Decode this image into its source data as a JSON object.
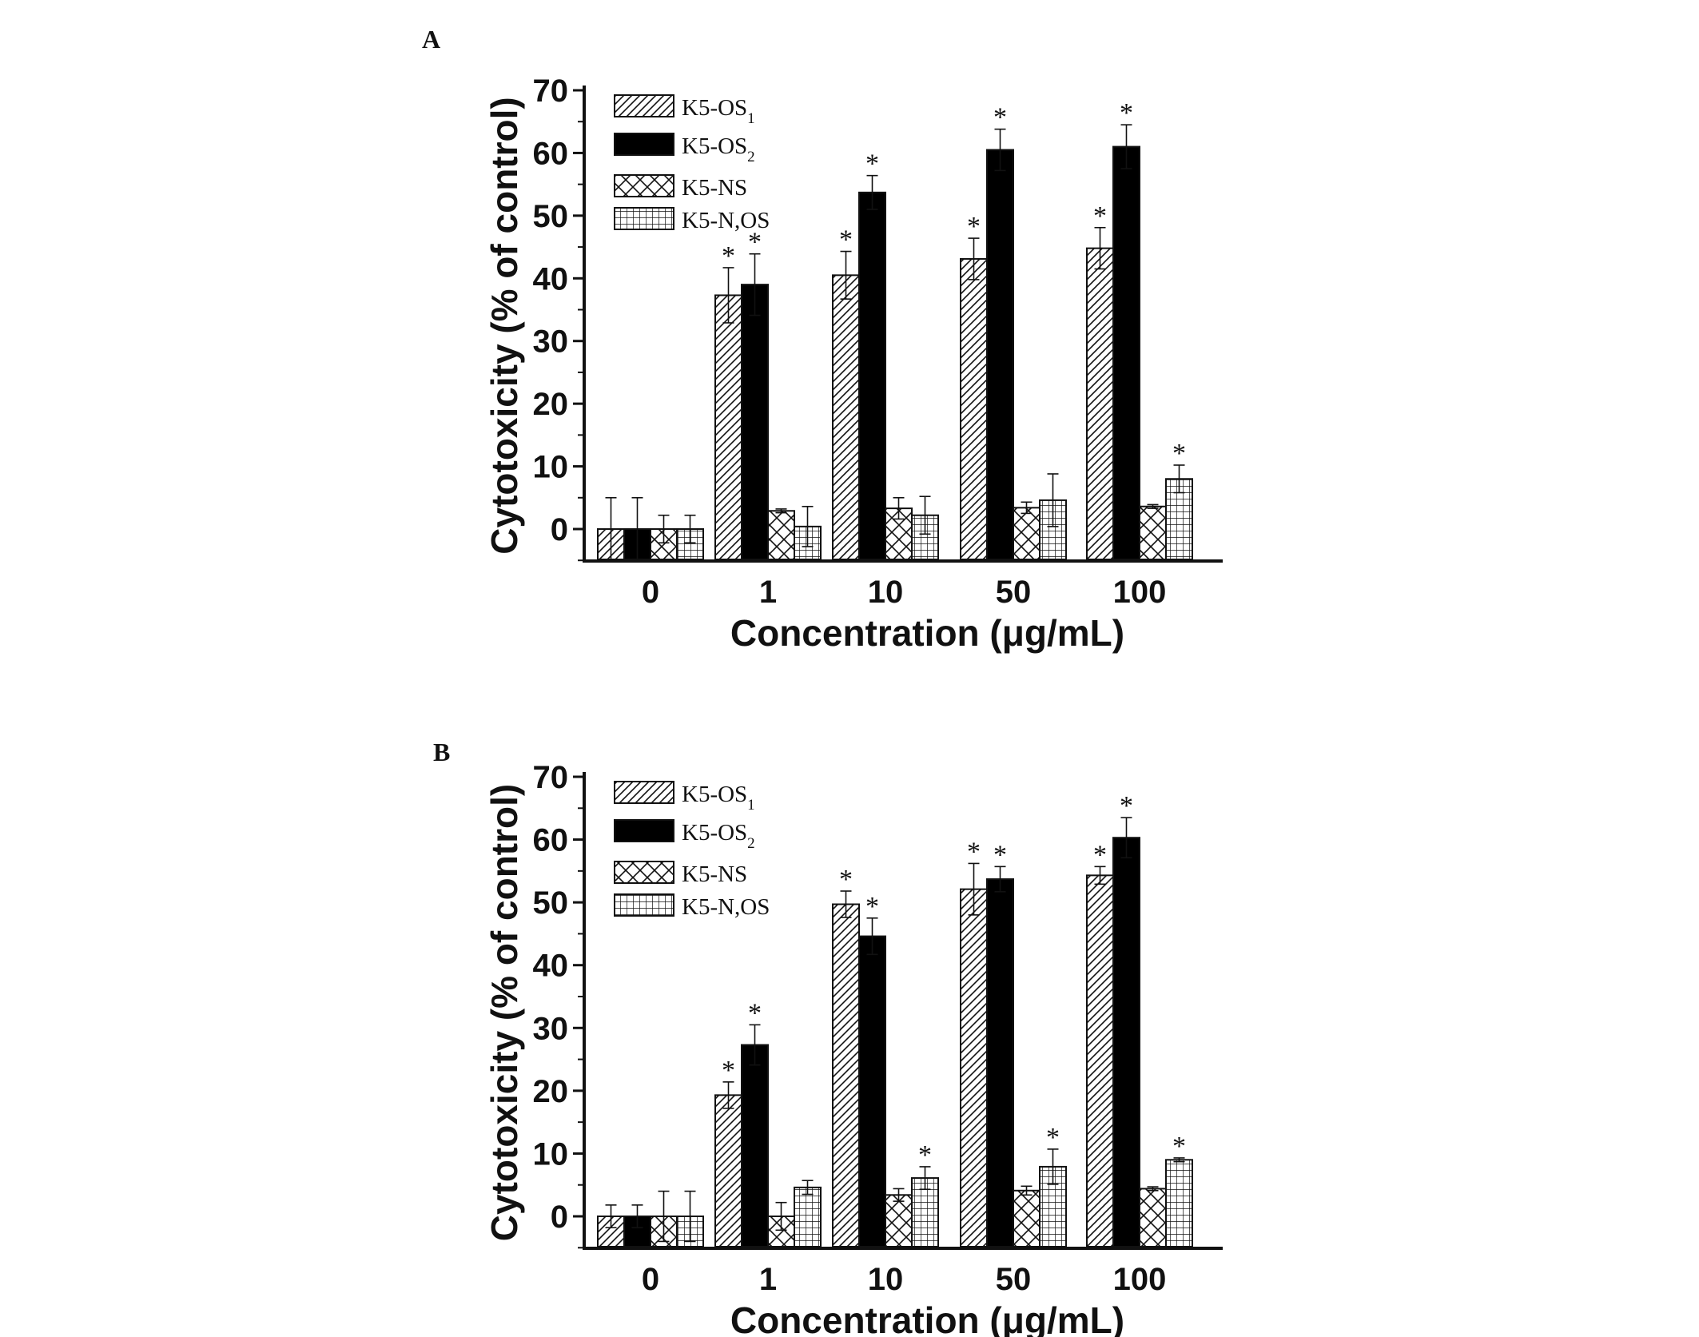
{
  "chart_data": [
    {
      "panel": "A",
      "type": "bar",
      "title": "",
      "xlabel": "Concentration (μg/mL)",
      "ylabel": "Cytotoxicity (% of control)",
      "ylim": [
        -5,
        70
      ],
      "yticks": [
        0,
        10,
        20,
        30,
        40,
        50,
        60,
        70
      ],
      "categories": [
        "0",
        "1",
        "10",
        "50",
        "100"
      ],
      "legend_position": "top-left",
      "series": [
        {
          "name": "K5-OS",
          "sub": "1",
          "pattern": "diagonal-hatch",
          "values": [
            0,
            37.3,
            40.5,
            43.1,
            44.8
          ],
          "errors": [
            5,
            4.4,
            3.8,
            3.3,
            3.3
          ],
          "significant": [
            false,
            true,
            true,
            true,
            true
          ]
        },
        {
          "name": "K5-OS",
          "sub": "2",
          "pattern": "solid-black",
          "values": [
            0,
            39.0,
            53.7,
            60.5,
            61.0
          ],
          "errors": [
            5,
            4.9,
            2.7,
            3.3,
            3.5
          ],
          "significant": [
            false,
            true,
            true,
            true,
            true
          ]
        },
        {
          "name": "K5-NS",
          "sub": "",
          "pattern": "crosshatch",
          "values": [
            0,
            2.9,
            3.3,
            3.4,
            3.6
          ],
          "errors": [
            2.2,
            0.3,
            1.7,
            0.9,
            0.3
          ],
          "significant": [
            false,
            false,
            false,
            false,
            false
          ]
        },
        {
          "name": "K5-N,OS",
          "sub": "",
          "pattern": "grid",
          "values": [
            0,
            0.4,
            2.2,
            4.6,
            8.0
          ],
          "errors": [
            2.2,
            3.2,
            3.0,
            4.2,
            2.2
          ],
          "significant": [
            false,
            false,
            false,
            false,
            true
          ]
        }
      ],
      "annotation": "*"
    },
    {
      "panel": "B",
      "type": "bar",
      "title": "",
      "xlabel": "Concentration (μg/mL)",
      "ylabel": "Cytotoxicity (% of control)",
      "ylim": [
        -5,
        70
      ],
      "yticks": [
        0,
        10,
        20,
        30,
        40,
        50,
        60,
        70
      ],
      "categories": [
        "0",
        "1",
        "10",
        "50",
        "100"
      ],
      "legend_position": "top-left",
      "series": [
        {
          "name": "K5-OS",
          "sub": "1",
          "pattern": "diagonal-hatch",
          "values": [
            0,
            19.3,
            49.7,
            52.1,
            54.3
          ],
          "errors": [
            1.8,
            2.1,
            2.1,
            4.1,
            1.4
          ],
          "significant": [
            false,
            true,
            true,
            true,
            true
          ]
        },
        {
          "name": "K5-OS",
          "sub": "2",
          "pattern": "solid-black",
          "values": [
            0,
            27.3,
            44.6,
            53.7,
            60.3
          ],
          "errors": [
            1.8,
            3.2,
            2.9,
            2.0,
            3.2
          ],
          "significant": [
            false,
            true,
            true,
            true,
            true
          ]
        },
        {
          "name": "K5-NS",
          "sub": "",
          "pattern": "crosshatch",
          "values": [
            0,
            0,
            3.4,
            4.1,
            4.4
          ],
          "errors": [
            4.0,
            2.2,
            1.0,
            0.7,
            0.3
          ],
          "significant": [
            false,
            false,
            false,
            false,
            false
          ]
        },
        {
          "name": "K5-N,OS",
          "sub": "",
          "pattern": "grid",
          "values": [
            0,
            4.6,
            6.1,
            7.9,
            9.0
          ],
          "errors": [
            4.0,
            1.1,
            1.8,
            2.8,
            0.3
          ],
          "significant": [
            false,
            false,
            true,
            true,
            true
          ]
        }
      ],
      "annotation": "*"
    }
  ]
}
